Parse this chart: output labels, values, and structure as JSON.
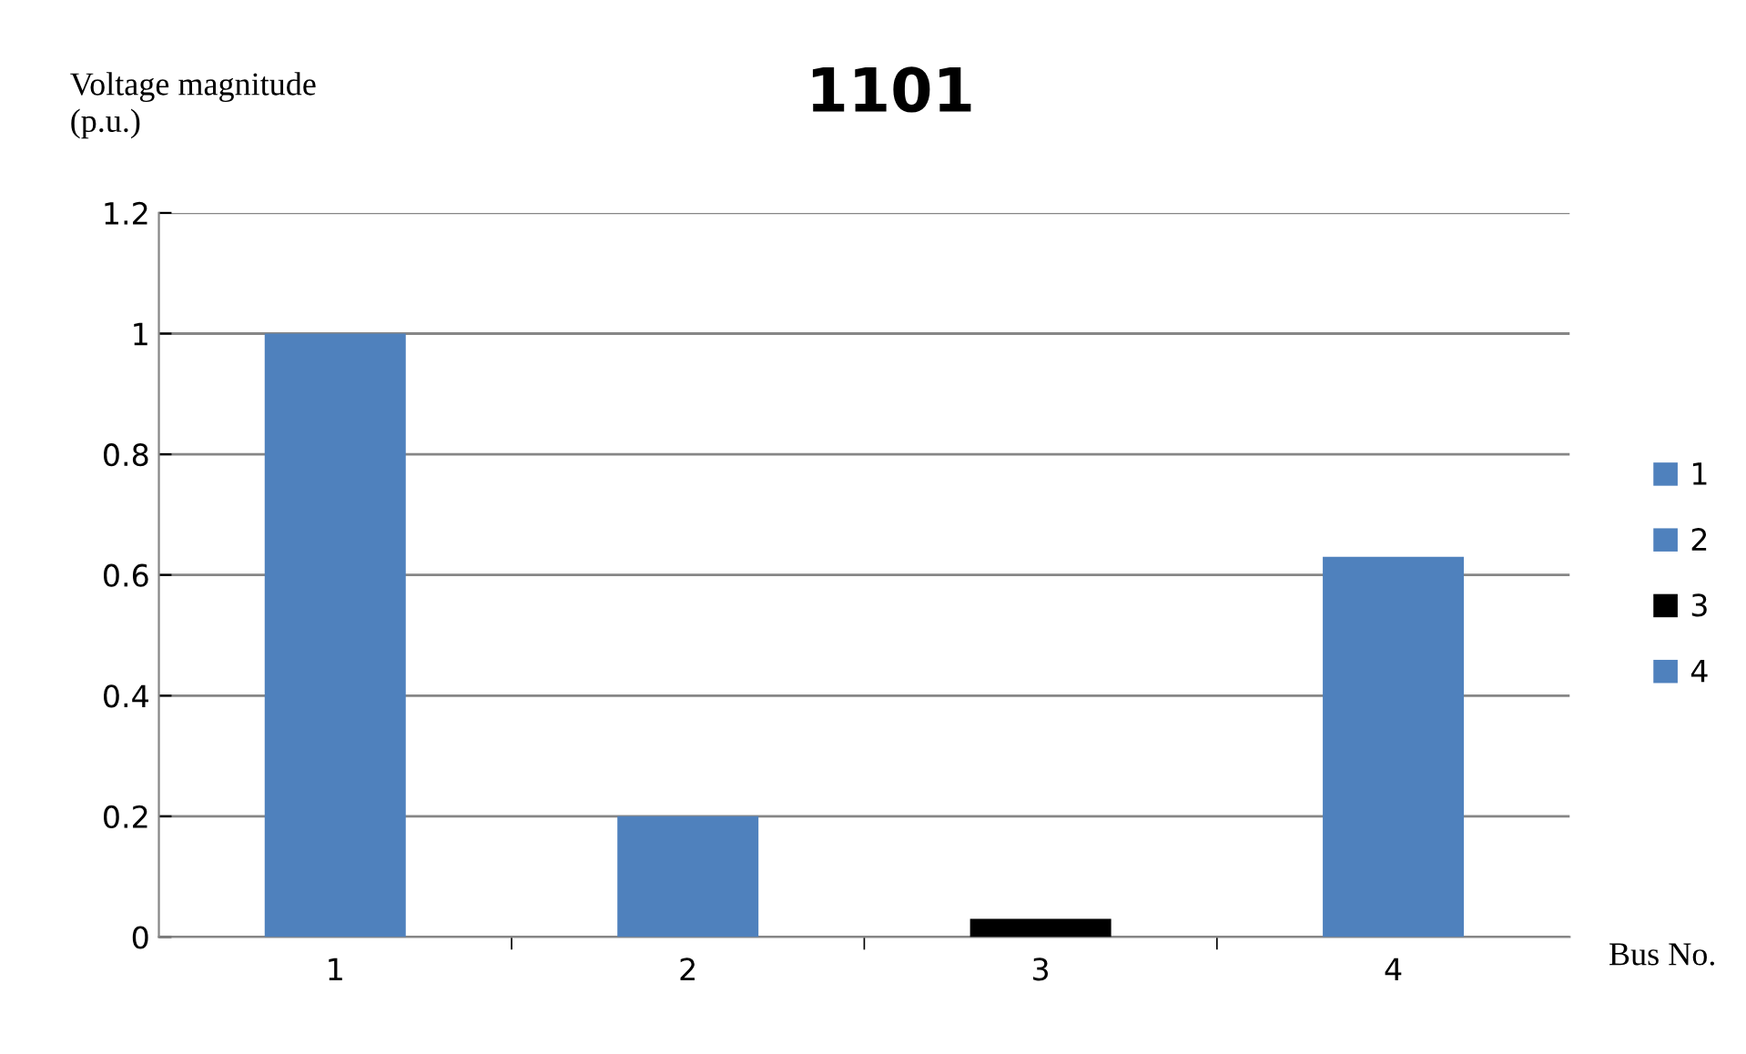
{
  "chart_data": {
    "type": "bar",
    "title": "1101",
    "ylabel": "Voltage magnitude\n(p.u.)",
    "xlabel": "Bus No.",
    "categories": [
      "1",
      "2",
      "3",
      "4"
    ],
    "series": [
      {
        "name": "1",
        "color": "#4f81bd",
        "values": [
          1.0,
          null,
          null,
          null
        ]
      },
      {
        "name": "2",
        "color": "#4f81bd",
        "values": [
          null,
          0.2,
          null,
          null
        ]
      },
      {
        "name": "3",
        "color": "#000000",
        "values": [
          null,
          null,
          0.03,
          null
        ]
      },
      {
        "name": "4",
        "color": "#4f81bd",
        "values": [
          null,
          null,
          null,
          0.63
        ]
      }
    ],
    "ylim": [
      0,
      1.2
    ],
    "yticks": [
      0,
      0.2,
      0.4,
      0.6,
      0.8,
      1,
      1.2
    ],
    "grid": "y",
    "legend": "right"
  }
}
